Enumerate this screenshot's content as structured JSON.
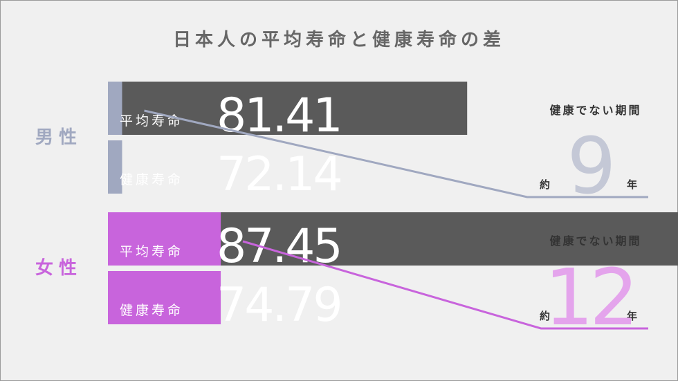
{
  "chart_data": {
    "type": "bar",
    "title": "日本人の平均寿命と健康寿命の差",
    "categories": [
      "男性",
      "女性"
    ],
    "series": [
      {
        "name": "平均寿命",
        "values": [
          81.41,
          87.45
        ]
      },
      {
        "name": "健康寿命",
        "values": [
          72.14,
          74.79
        ]
      }
    ],
    "gap": {
      "label": "健康でない期間",
      "prefix": "約",
      "suffix": "年",
      "values": [
        "9",
        "12"
      ]
    },
    "colors": {
      "male": "#a0a8c0",
      "female": "#c864dc",
      "gap_box": "#5a5a5a",
      "male_gap_number": "#c4c8d6",
      "female_gap_number": "#e4a4ec",
      "title": "#666666",
      "text": "#333333"
    }
  }
}
